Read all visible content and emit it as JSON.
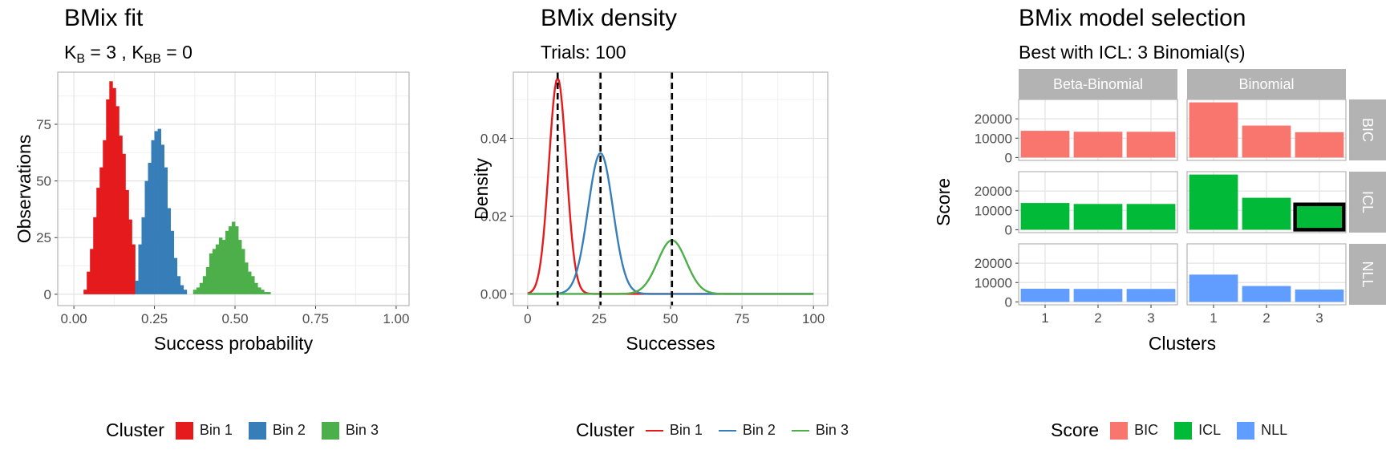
{
  "panels": {
    "fit": {
      "title": "BMix fit",
      "subtitle": {
        "k": "K",
        "b_sub": "B",
        "b_val": " = 3 , ",
        "bb_sub": "BB",
        "bb_val": " = 0"
      },
      "legend_title": "Cluster"
    },
    "density": {
      "title": "BMix density",
      "subtitle": "Trials: 100",
      "legend_title": "Cluster"
    },
    "selection": {
      "title": "BMix model selection",
      "subtitle": "Best with ICL: 3 Binomial(s)",
      "legend_title": "Score"
    }
  },
  "chart_data": [
    {
      "type": "bar",
      "title": "BMix fit",
      "xlabel": "Success probability",
      "ylabel": "Observations",
      "xlim": [
        -0.05,
        1.04
      ],
      "ylim": [
        -5,
        98
      ],
      "xticks": [
        0,
        0.25,
        0.5,
        0.75,
        1
      ],
      "xtick_labels": [
        "0.00",
        "0.25",
        "0.50",
        "0.75",
        "1.00"
      ],
      "yticks": [
        0,
        25,
        50,
        75
      ],
      "ytick_labels": [
        "0",
        "25",
        "50",
        "75"
      ],
      "bin_width": 0.01,
      "grid": true,
      "legend_position": "bottom",
      "series": [
        {
          "name": "Bin 1",
          "color": "#E41A1C",
          "bin_start": 0.03,
          "values": [
            2,
            10,
            20,
            34,
            47,
            56,
            68,
            86,
            94,
            91,
            83,
            70,
            62,
            46,
            33,
            22
          ]
        },
        {
          "name": "Bin 2",
          "color": "#377EB8",
          "bin_start": 0.19,
          "values": [
            6,
            22,
            34,
            50,
            58,
            68,
            72,
            73,
            66,
            56,
            38,
            28,
            16,
            8,
            4,
            2
          ]
        },
        {
          "name": "Bin 3",
          "color": "#4DAF4A",
          "bin_start": 0.37,
          "values": [
            2,
            3,
            5,
            8,
            12,
            18,
            20,
            22,
            25,
            24,
            28,
            30,
            32,
            30,
            24,
            20,
            14,
            10,
            8,
            5,
            3,
            2,
            1,
            1
          ]
        }
      ]
    },
    {
      "type": "line",
      "title": "BMix density",
      "xlabel": "Successes",
      "ylabel": "Density",
      "xlim": [
        -5,
        105
      ],
      "ylim": [
        -0.003,
        0.057
      ],
      "xticks": [
        0,
        25,
        50,
        75,
        100
      ],
      "xtick_labels": [
        "0",
        "25",
        "50",
        "75",
        "100"
      ],
      "yticks": [
        0,
        0.02,
        0.04
      ],
      "ytick_labels": [
        "0.00",
        "0.02",
        "0.04"
      ],
      "grid": true,
      "legend_position": "bottom",
      "trials": 100,
      "means": [
        10.5,
        25.5,
        50.5
      ],
      "series": [
        {
          "name": "Bin 1",
          "color": "#E41A1C",
          "mean": 10.5,
          "sd": 3.05,
          "peak": 0.0555
        },
        {
          "name": "Bin 2",
          "color": "#377EB8",
          "mean": 25.5,
          "sd": 4.35,
          "peak": 0.0362
        },
        {
          "name": "Bin 3",
          "color": "#4DAF4A",
          "mean": 50.5,
          "sd": 5.0,
          "peak": 0.0138
        }
      ]
    },
    {
      "type": "bar",
      "title": "BMix model selection",
      "xlabel": "Clusters",
      "ylabel": "Score",
      "categories": [
        "1",
        "2",
        "3"
      ],
      "columns": [
        "Beta-Binomial",
        "Binomial"
      ],
      "rows": [
        "BIC",
        "ICL",
        "NLL"
      ],
      "yticks": [
        0,
        10000,
        20000
      ],
      "ytick_labels": [
        "0",
        "10000",
        "20000"
      ],
      "ylim": [
        -1500,
        30000
      ],
      "grid": true,
      "legend_position": "bottom",
      "colors": {
        "BIC": "#F8766D",
        "ICL": "#00BA38",
        "NLL": "#619CFF"
      },
      "highlight": {
        "row": "ICL",
        "column": "Binomial",
        "category": "3"
      },
      "values": {
        "BIC": {
          "Beta-Binomial": [
            13800,
            13300,
            13300
          ],
          "Binomial": [
            28500,
            16500,
            13100
          ]
        },
        "ICL": {
          "Beta-Binomial": [
            13800,
            13300,
            13300
          ],
          "Binomial": [
            28500,
            16500,
            13100
          ]
        },
        "NLL": {
          "Beta-Binomial": [
            6800,
            6700,
            6700
          ],
          "Binomial": [
            14100,
            8200,
            6400
          ]
        }
      },
      "legend": [
        "BIC",
        "ICL",
        "NLL"
      ]
    }
  ]
}
